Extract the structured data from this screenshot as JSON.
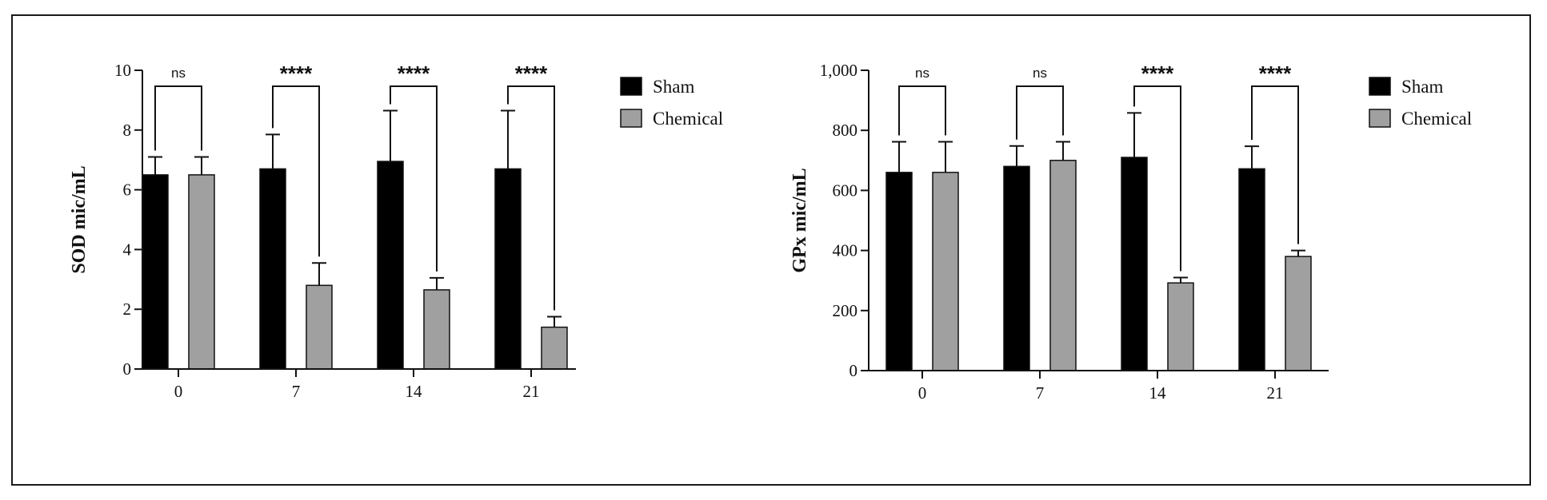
{
  "colors": {
    "sham": "#000000",
    "chemical": "#a0a0a0",
    "axis": "#111111"
  },
  "chart_data": [
    {
      "type": "bar",
      "ylabel": "SOD mic/mL",
      "ylim": [
        0,
        10
      ],
      "yticks": [
        "0",
        "2",
        "4",
        "6",
        "8",
        "10"
      ],
      "categories": [
        "0",
        "7",
        "14",
        "21"
      ],
      "legend": {
        "placement": "right",
        "entries": [
          "Sham",
          "Chemical"
        ]
      },
      "series": [
        {
          "name": "Sham",
          "values": [
            6.5,
            6.7,
            6.95,
            6.7
          ],
          "errors": [
            0.6,
            1.15,
            1.7,
            1.95
          ]
        },
        {
          "name": "Chemical",
          "values": [
            6.5,
            2.8,
            2.65,
            1.4
          ],
          "errors": [
            0.6,
            0.75,
            0.4,
            0.35
          ]
        }
      ],
      "significance": [
        "ns",
        "****",
        "****",
        "****"
      ]
    },
    {
      "type": "bar",
      "ylabel": "GPx mic/mL",
      "ylim": [
        0,
        1000
      ],
      "yticks": [
        "0",
        "200",
        "400",
        "600",
        "800",
        "1,000"
      ],
      "categories": [
        "0",
        "7",
        "14",
        "21"
      ],
      "legend": {
        "placement": "right",
        "entries": [
          "Sham",
          "Chemical"
        ]
      },
      "series": [
        {
          "name": "Sham",
          "values": [
            660,
            680,
            710,
            672
          ],
          "errors": [
            102,
            68,
            148,
            75
          ]
        },
        {
          "name": "Chemical",
          "values": [
            660,
            700,
            292,
            380
          ],
          "errors": [
            102,
            62,
            18,
            20
          ]
        }
      ],
      "significance": [
        "ns",
        "ns",
        "****",
        "****"
      ]
    }
  ]
}
